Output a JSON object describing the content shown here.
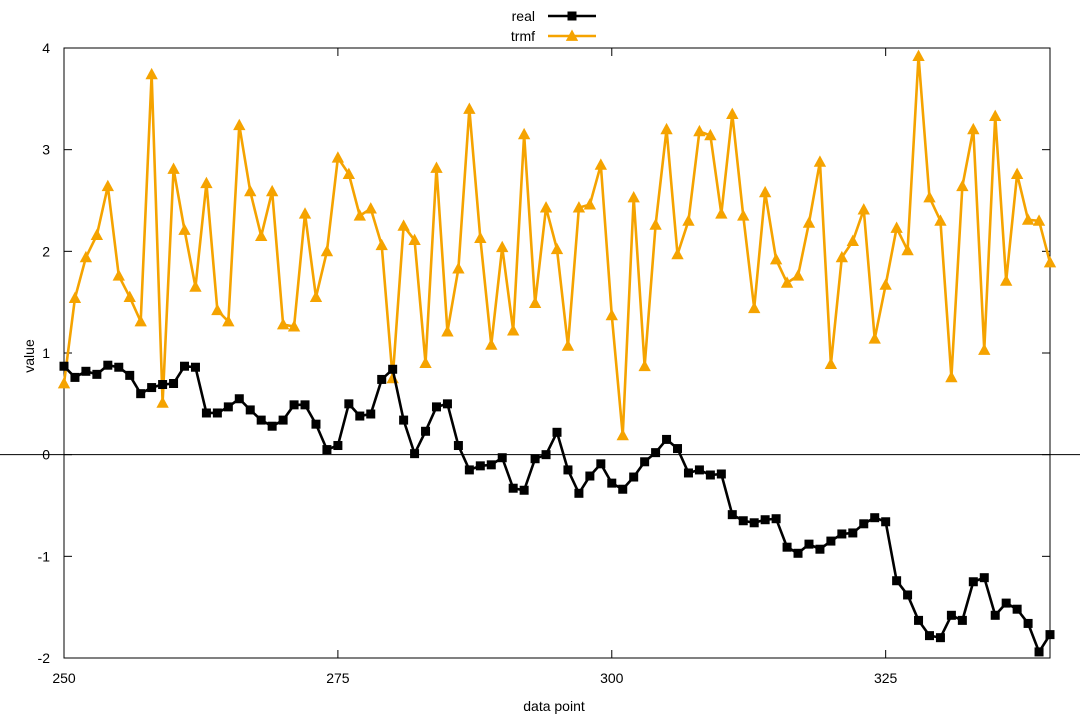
{
  "chart_data": {
    "type": "line",
    "xlabel": "data point",
    "ylabel": "value",
    "xlim": [
      250,
      340
    ],
    "ylim": [
      -2,
      4
    ],
    "xticks": [
      250,
      275,
      300,
      325
    ],
    "yticks": [
      -2,
      -1,
      0,
      1,
      2,
      3,
      4
    ],
    "zero_line": true,
    "grid": false,
    "legend": "top-center",
    "series": [
      {
        "name": "real",
        "color": "#000000",
        "marker": "square",
        "x": [
          250,
          251,
          252,
          253,
          254,
          255,
          256,
          257,
          258,
          259,
          260,
          261,
          262,
          263,
          264,
          265,
          266,
          267,
          268,
          269,
          270,
          271,
          272,
          273,
          274,
          275,
          276,
          277,
          278,
          279,
          280,
          281,
          282,
          283,
          284,
          285,
          286,
          287,
          288,
          289,
          290,
          291,
          292,
          293,
          294,
          295,
          296,
          297,
          298,
          299,
          300,
          301,
          302,
          303,
          304,
          305,
          306,
          307,
          308,
          309,
          310,
          311,
          312,
          313,
          314,
          315,
          316,
          317,
          318,
          319,
          320,
          321,
          322,
          323,
          324,
          325,
          326,
          327,
          328,
          329,
          330,
          331,
          332,
          333,
          334,
          335,
          336,
          337,
          338,
          339,
          340
        ],
        "values": [
          0.87,
          0.76,
          0.82,
          0.79,
          0.88,
          0.86,
          0.78,
          0.6,
          0.66,
          0.69,
          0.7,
          0.87,
          0.86,
          0.41,
          0.41,
          0.47,
          0.55,
          0.44,
          0.34,
          0.28,
          0.34,
          0.49,
          0.49,
          0.3,
          0.05,
          0.09,
          0.5,
          0.38,
          0.4,
          0.74,
          0.84,
          0.34,
          0.01,
          0.23,
          0.47,
          0.5,
          0.09,
          -0.15,
          -0.11,
          -0.1,
          -0.03,
          -0.33,
          -0.35,
          -0.04,
          0.0,
          0.22,
          -0.15,
          -0.38,
          -0.21,
          -0.09,
          -0.28,
          -0.34,
          -0.22,
          -0.07,
          0.02,
          0.15,
          0.06,
          -0.18,
          -0.15,
          -0.2,
          -0.19,
          -0.59,
          -0.65,
          -0.67,
          -0.64,
          -0.63,
          -0.91,
          -0.97,
          -0.88,
          -0.93,
          -0.85,
          -0.78,
          -0.77,
          -0.68,
          -0.62,
          -0.66,
          -1.24,
          -1.38,
          -1.63,
          -1.78,
          -1.8,
          -1.58,
          -1.63,
          -1.25,
          -1.21,
          -1.58,
          -1.46,
          -1.52,
          -1.66,
          -1.94,
          -1.77
        ]
      },
      {
        "name": "trmf",
        "color": "#f5a300",
        "marker": "triangle",
        "x": [
          250,
          251,
          252,
          253,
          254,
          255,
          256,
          257,
          258,
          259,
          260,
          261,
          262,
          263,
          264,
          265,
          266,
          267,
          268,
          269,
          270,
          271,
          272,
          273,
          274,
          275,
          276,
          277,
          278,
          279,
          280,
          281,
          282,
          283,
          284,
          285,
          286,
          287,
          288,
          289,
          290,
          291,
          292,
          293,
          294,
          295,
          296,
          297,
          298,
          299,
          300,
          301,
          302,
          303,
          304,
          305,
          306,
          307,
          308,
          309,
          310,
          311,
          312,
          313,
          314,
          315,
          316,
          317,
          318,
          319,
          320,
          321,
          322,
          323,
          324,
          325,
          326,
          327,
          328,
          329,
          330,
          331,
          332,
          333,
          334,
          335,
          336,
          337,
          338,
          339,
          340
        ],
        "values": [
          0.7,
          1.54,
          1.94,
          2.16,
          2.64,
          1.76,
          1.55,
          1.31,
          3.74,
          0.51,
          2.81,
          2.21,
          1.65,
          2.67,
          1.42,
          1.31,
          3.24,
          2.59,
          2.15,
          2.59,
          1.28,
          1.26,
          2.37,
          1.55,
          2.0,
          2.92,
          2.76,
          2.35,
          2.42,
          2.06,
          0.75,
          2.25,
          2.11,
          0.9,
          2.82,
          1.21,
          1.83,
          3.4,
          2.13,
          1.08,
          2.04,
          1.22,
          3.15,
          1.49,
          2.43,
          2.02,
          1.07,
          2.43,
          2.46,
          2.85,
          1.37,
          0.19,
          2.53,
          0.87,
          2.26,
          3.2,
          1.97,
          2.3,
          3.18,
          3.14,
          2.37,
          3.35,
          2.35,
          1.44,
          2.58,
          1.92,
          1.69,
          1.76,
          2.28,
          2.88,
          0.89,
          1.94,
          2.1,
          2.41,
          1.14,
          1.67,
          2.23,
          2.01,
          3.92,
          2.53,
          2.3,
          0.76,
          2.64,
          3.2,
          1.03,
          3.33,
          1.71,
          2.76,
          2.31,
          2.3,
          1.89
        ]
      }
    ]
  }
}
